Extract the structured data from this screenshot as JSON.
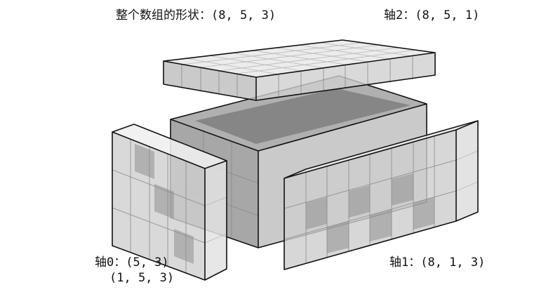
{
  "labels": {
    "whole_shape": "整个数组的形状：(8, 5, 3)",
    "axis2": "轴2：(8, 5, 1)",
    "axis0_line1": "轴0：(5, 3)",
    "axis0_line2": "(1, 5, 3)",
    "axis1": "轴1：(8, 1, 3)"
  },
  "colors": {
    "face_light": "#e6e6e6",
    "face_mid": "#c9c9c9",
    "face_dark": "#9a9a9a",
    "inner_dark": "#6f6f6f",
    "edge": "#111111"
  }
}
